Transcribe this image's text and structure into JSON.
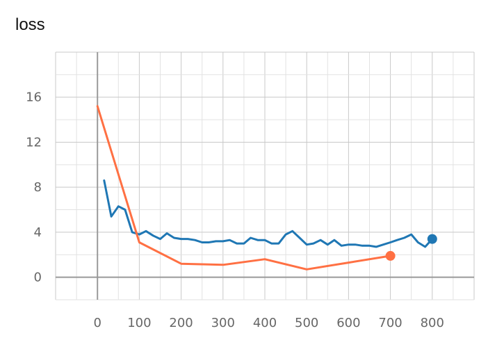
{
  "chart_data": {
    "type": "line",
    "title": "loss",
    "xlabel": "",
    "ylabel": "",
    "xlim": [
      -100,
      900
    ],
    "ylim": [
      -2,
      20
    ],
    "xticks": [
      0,
      100,
      200,
      300,
      400,
      500,
      600,
      700,
      800
    ],
    "yticks": [
      0,
      4,
      8,
      12,
      16
    ],
    "grid": true,
    "series": [
      {
        "color": "#1f77b4",
        "x": [
          16,
          33,
          50,
          66,
          83,
          100,
          116,
          133,
          150,
          166,
          183,
          200,
          216,
          233,
          250,
          266,
          283,
          300,
          316,
          333,
          350,
          366,
          383,
          400,
          416,
          433,
          450,
          466,
          483,
          500,
          516,
          533,
          550,
          566,
          583,
          600,
          616,
          633,
          650,
          666,
          683,
          700,
          716,
          733,
          750,
          766,
          783,
          800
        ],
        "y": [
          8.6,
          5.4,
          6.3,
          6.0,
          4.0,
          3.8,
          4.1,
          3.7,
          3.4,
          3.9,
          3.5,
          3.4,
          3.4,
          3.3,
          3.1,
          3.1,
          3.2,
          3.2,
          3.3,
          3.0,
          3.0,
          3.5,
          3.3,
          3.3,
          3.0,
          3.0,
          3.8,
          4.1,
          3.5,
          2.9,
          3.0,
          3.3,
          2.9,
          3.3,
          2.8,
          2.9,
          2.9,
          2.8,
          2.8,
          2.7,
          2.9,
          3.1,
          3.3,
          3.5,
          3.8,
          3.1,
          2.7,
          3.4
        ]
      },
      {
        "color": "#ff7043",
        "x": [
          0,
          100,
          200,
          300,
          400,
          500,
          600,
          700
        ],
        "y": [
          15.2,
          3.1,
          1.2,
          1.1,
          1.6,
          0.7,
          1.3,
          1.9
        ]
      }
    ]
  }
}
